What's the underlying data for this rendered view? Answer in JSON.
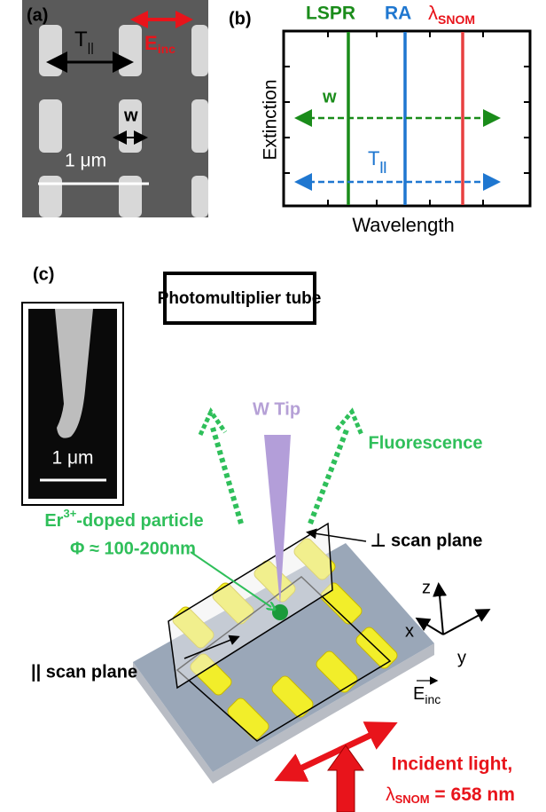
{
  "panel_a": {
    "label": "(a)",
    "period": {
      "symbol": "T",
      "subscript": "||"
    },
    "field": {
      "symbol": "E",
      "subscript": "inc"
    },
    "width_label": "w",
    "scale_bar": "1 μm"
  },
  "panel_b": {
    "label": "(b)",
    "legend": {
      "lspr": "LSPR",
      "ra": "RA",
      "snom": {
        "symbol": "λ",
        "subscript": "SNOM"
      }
    },
    "y_axis": "Extinction",
    "x_axis": "Wavelength",
    "width_label": "w",
    "period": {
      "symbol": "T",
      "subscript": "||"
    }
  },
  "panel_c": {
    "label": "(c)",
    "detector": "Photomultiplier tube",
    "tip": "W Tip",
    "emission": "Fluorescence",
    "inset_scale_bar": "1 μm",
    "particle": {
      "name": "Er",
      "superscript": "3+",
      "suffix": "-doped particle",
      "size": "Φ ≈ 100-200nm"
    },
    "perp_plane": "⊥ scan plane",
    "par_plane": "|| scan plane",
    "axes": {
      "x": "x",
      "y": "y",
      "z": "z"
    },
    "field": {
      "symbol": "E",
      "subscript": "inc"
    },
    "light": {
      "line1": "Incident light,",
      "symbol": "λ",
      "subscript": "SNOM",
      "value": " = 658 nm"
    }
  }
}
